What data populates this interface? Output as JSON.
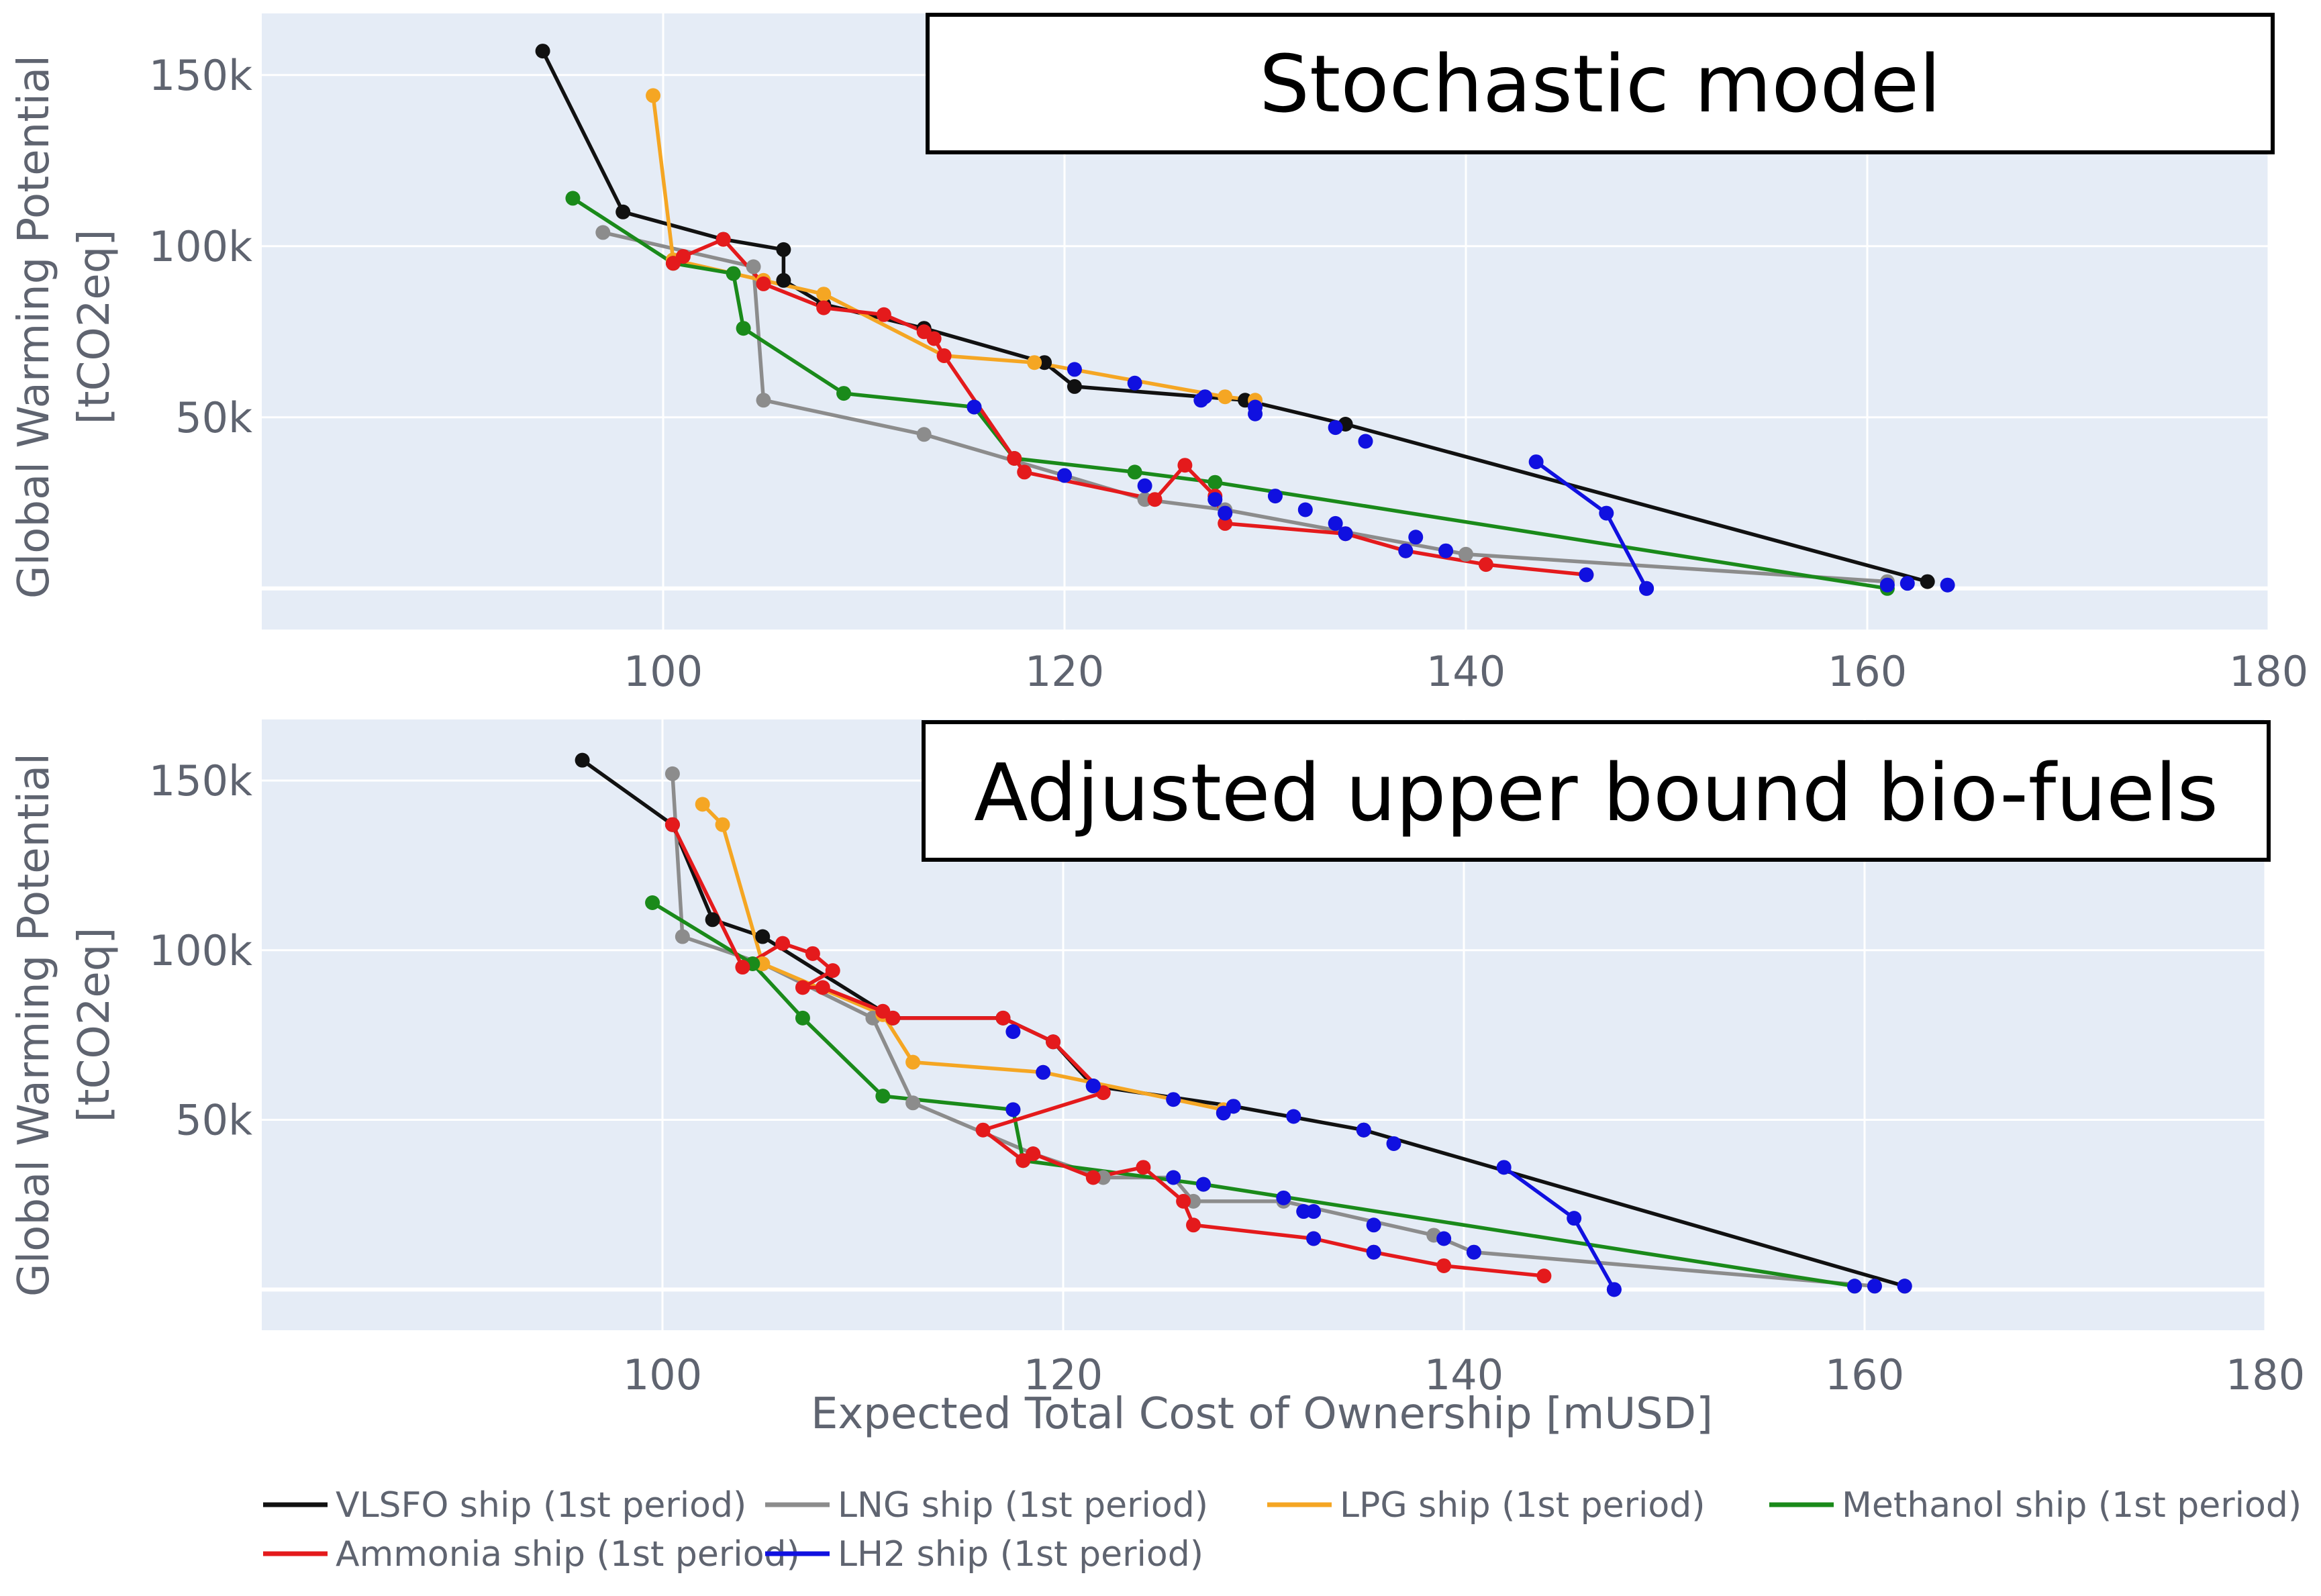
{
  "figure": {
    "xlabel": "Expected Total Cost of Ownership [mUSD]",
    "ylabel_line1": "Global Warming Potential",
    "ylabel_line2": "[tCO2eq]"
  },
  "legend": [
    {
      "name": "VLSFO ship (1st period)",
      "color": "#111111"
    },
    {
      "name": "LNG ship (1st period)",
      "color": "#8c8c8c"
    },
    {
      "name": "LPG ship (1st period)",
      "color": "#f5a623"
    },
    {
      "name": "Methanol ship (1st period)",
      "color": "#1a8a1a"
    },
    {
      "name": "Ammonia ship (1st period)",
      "color": "#e41a1c"
    },
    {
      "name": "LH2 ship (1st period)",
      "color": "#1010e0"
    }
  ],
  "chart_data": [
    {
      "type": "line",
      "title": "Stochastic model",
      "xlim": [
        80,
        180
      ],
      "ylim": [
        -12000,
        168000
      ],
      "xticks": [
        100,
        120,
        140,
        160,
        180
      ],
      "xtick_labels": [
        "100",
        "120",
        "140",
        "160",
        "180"
      ],
      "yticks": [
        50000,
        100000,
        150000
      ],
      "ytick_labels": [
        "50k",
        "100k",
        "150k"
      ],
      "series": [
        {
          "name": "VLSFO ship (1st period)",
          "color": "#111111",
          "points": [
            [
              94,
              157000
            ],
            [
              98,
              110000
            ],
            [
              103,
              102000
            ],
            [
              106,
              99000
            ],
            [
              106,
              90000
            ],
            [
              108,
              83000
            ],
            [
              113,
              76000
            ],
            [
              119,
              66000
            ],
            [
              120.5,
              59000
            ],
            [
              129,
              55000
            ],
            [
              134,
              48000
            ],
            [
              163,
              2000
            ]
          ]
        },
        {
          "name": "LNG ship (1st period)",
          "color": "#8c8c8c",
          "points": [
            [
              97,
              104000
            ],
            [
              104.5,
              94000
            ],
            [
              105,
              55000
            ],
            [
              113,
              45000
            ],
            [
              120,
              33000
            ],
            [
              124,
              26000
            ],
            [
              128,
              23000
            ],
            [
              140,
              10000
            ],
            [
              161,
              2000
            ]
          ]
        },
        {
          "name": "LPG ship (1st period)",
          "color": "#f5a623",
          "points": [
            [
              99.5,
              144000
            ],
            [
              100.5,
              96000
            ],
            [
              105,
              90000
            ],
            [
              108,
              86000
            ],
            [
              114,
              68000
            ],
            [
              118.5,
              66000
            ],
            [
              128,
              56000
            ],
            [
              129.5,
              55000
            ]
          ]
        },
        {
          "name": "Methanol ship (1st period)",
          "color": "#1a8a1a",
          "points": [
            [
              95.5,
              114000
            ],
            [
              100.5,
              95000
            ],
            [
              103.5,
              92000
            ],
            [
              104,
              76000
            ],
            [
              109,
              57000
            ],
            [
              115.5,
              53000
            ],
            [
              117.5,
              38000
            ],
            [
              123.5,
              34000
            ],
            [
              127.5,
              31000
            ],
            [
              161,
              0
            ]
          ]
        },
        {
          "name": "Ammonia ship (1st period)",
          "color": "#e41a1c",
          "points": [
            [
              100.5,
              95000
            ],
            [
              101,
              97000
            ],
            [
              103,
              102000
            ],
            [
              105,
              89000
            ],
            [
              108,
              82000
            ],
            [
              111,
              80000
            ],
            [
              113,
              75000
            ],
            [
              113.5,
              73000
            ],
            [
              114,
              68000
            ],
            [
              117.5,
              38000
            ],
            [
              118,
              34000
            ],
            [
              124.5,
              26000
            ],
            [
              126,
              36000
            ],
            [
              127.5,
              27000
            ],
            [
              128,
              19000
            ],
            [
              134,
              16000
            ],
            [
              137,
              11000
            ],
            [
              141,
              7000
            ],
            [
              146,
              4000
            ]
          ]
        },
        {
          "name": "LH2 ship (1st period)",
          "color": "#1010e0",
          "points": [
            [
              143.5,
              37000
            ],
            [
              147,
              22000
            ],
            [
              149,
              0
            ]
          ]
        }
      ],
      "extra_markers": [
        {
          "series": "LH2 ship (1st period)",
          "color": "#1010e0",
          "points": [
            [
              120.5,
              64000
            ],
            [
              123.5,
              60000
            ],
            [
              127,
              56000
            ],
            [
              126.8,
              55000
            ],
            [
              129.5,
              53000
            ],
            [
              129.5,
              51000
            ],
            [
              133.5,
              47000
            ],
            [
              135,
              43000
            ],
            [
              115.5,
              53000
            ],
            [
              120,
              33000
            ],
            [
              124,
              30000
            ],
            [
              127.5,
              26000
            ],
            [
              128,
              22000
            ],
            [
              130.5,
              27000
            ],
            [
              132,
              23000
            ],
            [
              133.5,
              19000
            ],
            [
              134,
              16000
            ],
            [
              137.5,
              15000
            ],
            [
              137,
              11000
            ],
            [
              139,
              11000
            ],
            [
              146,
              4000
            ],
            [
              149,
              0
            ],
            [
              161,
              1000
            ],
            [
              162,
              1500
            ],
            [
              164,
              1000
            ]
          ]
        }
      ]
    },
    {
      "type": "line",
      "title": "Adjusted upper bound bio-fuels",
      "xlim": [
        80,
        180
      ],
      "ylim": [
        -12000,
        168000
      ],
      "xticks": [
        100,
        120,
        140,
        160,
        180
      ],
      "xtick_labels": [
        "100",
        "120",
        "140",
        "160",
        "180"
      ],
      "yticks": [
        50000,
        100000,
        150000
      ],
      "ytick_labels": [
        "50k",
        "100k",
        "150k"
      ],
      "series": [
        {
          "name": "VLSFO ship (1st period)",
          "color": "#111111",
          "points": [
            [
              96,
              156000
            ],
            [
              100.5,
              137000
            ],
            [
              102.5,
              109000
            ],
            [
              105,
              104000
            ],
            [
              111.5,
              80000
            ],
            [
              117,
              80000
            ],
            [
              119.5,
              73000
            ],
            [
              121.5,
              60000
            ],
            [
              128.5,
              54000
            ],
            [
              135,
              47000
            ],
            [
              162,
              1000
            ]
          ]
        },
        {
          "name": "LNG ship (1st period)",
          "color": "#8c8c8c",
          "points": [
            [
              100.5,
              152000
            ],
            [
              101,
              104000
            ],
            [
              105,
              96000
            ],
            [
              110.5,
              80000
            ],
            [
              112.5,
              55000
            ],
            [
              118.5,
              40000
            ],
            [
              122,
              33000
            ],
            [
              125.5,
              33000
            ],
            [
              126.5,
              26000
            ],
            [
              131,
              26000
            ],
            [
              138.5,
              16000
            ],
            [
              140.5,
              11000
            ],
            [
              160.5,
              1000
            ]
          ]
        },
        {
          "name": "LPG ship (1st period)",
          "color": "#f5a623",
          "points": [
            [
              102,
              143000
            ],
            [
              103,
              137000
            ],
            [
              105,
              96000
            ],
            [
              111,
              81000
            ],
            [
              112.5,
              67000
            ],
            [
              119,
              64000
            ],
            [
              128,
              53000
            ]
          ]
        },
        {
          "name": "Methanol ship (1st period)",
          "color": "#1a8a1a",
          "points": [
            [
              99.5,
              114000
            ],
            [
              104.5,
              96000
            ],
            [
              107,
              80000
            ],
            [
              111,
              57000
            ],
            [
              117.5,
              53000
            ],
            [
              118,
              38000
            ],
            [
              127,
              31000
            ],
            [
              159.5,
              1000
            ]
          ]
        },
        {
          "name": "Ammonia ship (1st period)",
          "color": "#e41a1c",
          "points": [
            [
              100.5,
              137000
            ],
            [
              104,
              95000
            ],
            [
              106,
              102000
            ],
            [
              107.5,
              99000
            ],
            [
              108.5,
              94000
            ],
            [
              107,
              89000
            ],
            [
              108,
              89000
            ],
            [
              111,
              82000
            ],
            [
              111.5,
              80000
            ],
            [
              117,
              80000
            ],
            [
              119.5,
              73000
            ],
            [
              122,
              58000
            ],
            [
              116,
              47000
            ],
            [
              118,
              38000
            ],
            [
              118.5,
              40000
            ],
            [
              121.5,
              33000
            ],
            [
              124,
              36000
            ],
            [
              126,
              26000
            ],
            [
              126.5,
              19000
            ],
            [
              132.5,
              15000
            ],
            [
              135.5,
              11000
            ],
            [
              139,
              7000
            ],
            [
              144,
              4000
            ]
          ]
        },
        {
          "name": "LH2 ship (1st period)",
          "color": "#1010e0",
          "points": [
            [
              142,
              36000
            ],
            [
              145.5,
              21000
            ],
            [
              147.5,
              0
            ]
          ]
        }
      ],
      "extra_markers": [
        {
          "series": "LH2 ship (1st period)",
          "color": "#1010e0",
          "points": [
            [
              117.5,
              76000
            ],
            [
              119,
              64000
            ],
            [
              121.5,
              60000
            ],
            [
              125.5,
              56000
            ],
            [
              128,
              52000
            ],
            [
              128.5,
              54000
            ],
            [
              131.5,
              51000
            ],
            [
              135,
              47000
            ],
            [
              136.5,
              43000
            ],
            [
              117.5,
              53000
            ],
            [
              125.5,
              33000
            ],
            [
              127,
              31000
            ],
            [
              131,
              27000
            ],
            [
              132,
              23000
            ],
            [
              132.5,
              23000
            ],
            [
              132.5,
              15000
            ],
            [
              135.5,
              19000
            ],
            [
              135.5,
              11000
            ],
            [
              139,
              15000
            ],
            [
              140.5,
              11000
            ],
            [
              147.5,
              0
            ],
            [
              159.5,
              1000
            ],
            [
              160.5,
              1000
            ],
            [
              162,
              1000
            ]
          ]
        }
      ]
    }
  ]
}
